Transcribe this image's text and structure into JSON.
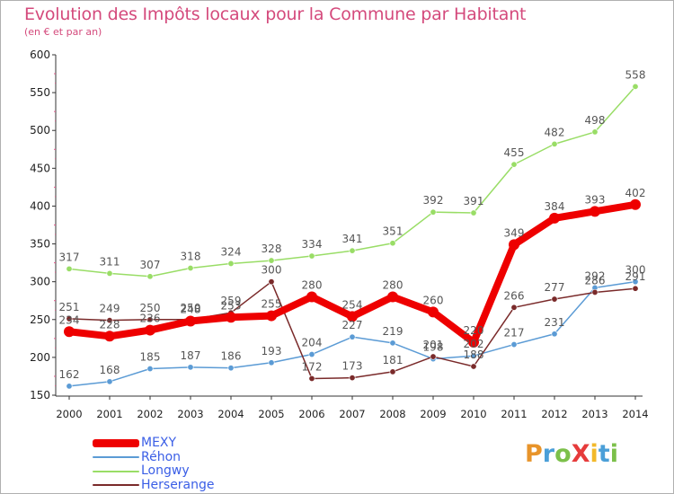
{
  "header": {
    "title": "Evolution des Impôts locaux pour la Commune par Habitant",
    "subtitle": "(en € et par an)"
  },
  "logo": {
    "text": "ProXiti",
    "colors": [
      "#e8942a",
      "#4b9fd8",
      "#7cc04a",
      "#e63b3b",
      "#f2b92a",
      "#4b9fd8",
      "#7cc04a"
    ]
  },
  "colors": {
    "axis": "#333333",
    "grid_tick": "#e05a8a",
    "value_label": "#555555"
  },
  "chart_data": {
    "type": "line",
    "title": "Evolution des Impôts locaux pour la Commune par Habitant",
    "subtitle": "(en € et par an)",
    "xlabel": "",
    "ylabel": "",
    "x": [
      2000,
      2001,
      2002,
      2003,
      2004,
      2005,
      2006,
      2007,
      2008,
      2009,
      2010,
      2011,
      2012,
      2013,
      2014
    ],
    "ylim": [
      150,
      600
    ],
    "yticks": [
      150,
      200,
      250,
      300,
      350,
      400,
      450,
      500,
      550,
      600
    ],
    "grid": false,
    "legend_position": "bottom-left",
    "series": [
      {
        "name": "MEXY",
        "color": "#ee0000",
        "width": 8,
        "values": [
          234,
          228,
          236,
          248,
          253,
          255,
          280,
          254,
          280,
          260,
          220,
          349,
          384,
          393,
          402
        ]
      },
      {
        "name": "Réhon",
        "color": "#5b9bd5",
        "width": 1.5,
        "values": [
          162,
          168,
          185,
          187,
          186,
          193,
          204,
          227,
          219,
          198,
          202,
          217,
          231,
          292,
          300
        ]
      },
      {
        "name": "Longwy",
        "color": "#99dd66",
        "width": 1.5,
        "values": [
          317,
          311,
          307,
          318,
          324,
          328,
          334,
          341,
          351,
          392,
          391,
          455,
          482,
          498,
          558
        ]
      },
      {
        "name": "Herserange",
        "color": "#7a2a2a",
        "width": 1.5,
        "values": [
          251,
          249,
          250,
          250,
          259,
          300,
          172,
          173,
          181,
          201,
          188,
          266,
          277,
          286,
          291
        ]
      }
    ]
  }
}
